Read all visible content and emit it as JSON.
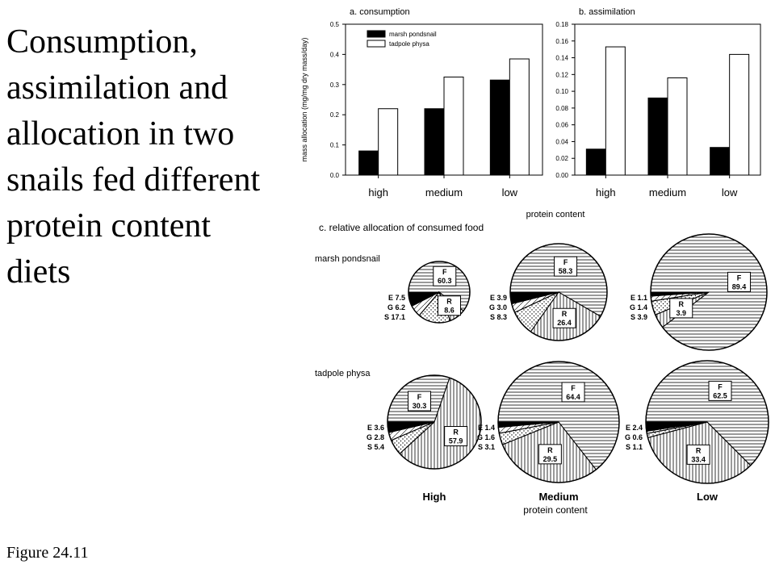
{
  "heading": {
    "lines": [
      "Consumption,",
      "assimilation and",
      "allocation in two",
      "snails fed different",
      "protein content",
      "diets"
    ]
  },
  "caption": "Figure 24.11",
  "colors": {
    "marsh_pondsnail": "#000000",
    "tadpole_physa": "#ffffff",
    "pie_slice_E": "#000000"
  },
  "chart_data": [
    {
      "type": "bar",
      "title": "a. consumption",
      "ylabel": "mass allocation (mg/mg dry mass/day)",
      "ylim": [
        0,
        0.5
      ],
      "yticks": [
        "0.0",
        "0.1",
        "0.2",
        "0.3",
        "0.4",
        "0.5"
      ],
      "categories": [
        "high",
        "medium",
        "low"
      ],
      "legend_position": "top-left",
      "series": [
        {
          "name": "marsh pondsnail",
          "values": [
            0.08,
            0.22,
            0.315
          ]
        },
        {
          "name": "tadpole physa",
          "values": [
            0.22,
            0.325,
            0.385
          ]
        }
      ]
    },
    {
      "type": "bar",
      "title": "b. assimilation",
      "ylim": [
        0,
        0.18
      ],
      "yticks": [
        "0.00",
        "0.02",
        "0.04",
        "0.06",
        "0.08",
        "0.10",
        "0.12",
        "0.14",
        "0.16",
        "0.18"
      ],
      "categories": [
        "high",
        "medium",
        "low"
      ],
      "xlabel": "protein content",
      "series": [
        {
          "name": "marsh pondsnail",
          "values": [
            0.031,
            0.092,
            0.033
          ]
        },
        {
          "name": "tadpole physa",
          "values": [
            0.153,
            0.116,
            0.144
          ]
        }
      ]
    },
    {
      "type": "pie",
      "title": "c. relative allocation of consumed food",
      "xlabel": "protein content",
      "diets": [
        "High",
        "Medium",
        "Low"
      ],
      "rows": [
        {
          "label": "marsh pondsnail",
          "pies": [
            {
              "F": "60.3",
              "R": "8.6",
              "S": "17.1",
              "G": "6.2",
              "E": "7.5"
            },
            {
              "F": "58.3",
              "R": "26.4",
              "S": "8.3",
              "G": "3.0",
              "E": "3.9"
            },
            {
              "F": "89.4",
              "R": "3.9",
              "S": "3.9",
              "G": "1.4",
              "E": "1.1"
            }
          ]
        },
        {
          "label": "tadpole physa",
          "pies": [
            {
              "F": "30.3",
              "R": "57.9",
              "S": "5.4",
              "G": "2.8",
              "E": "3.6"
            },
            {
              "F": "64.4",
              "R": "29.5",
              "S": "3.1",
              "G": "1.6",
              "E": "1.4"
            },
            {
              "F": "62.5",
              "R": "33.4",
              "S": "1.1",
              "G": "0.6",
              "E": "2.4"
            }
          ]
        }
      ]
    }
  ]
}
